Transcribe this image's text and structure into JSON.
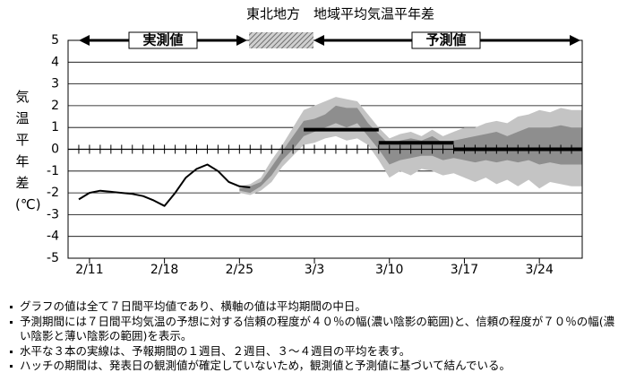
{
  "chart_data": {
    "type": "line",
    "title": "東北地方　地域平均気温平年差",
    "ylabel": "気温平年差(℃)",
    "annotations": [
      "実測値",
      "予測値"
    ],
    "categories": [
      null,
      null,
      "2/11",
      null,
      null,
      null,
      null,
      null,
      null,
      "2/18",
      null,
      null,
      null,
      null,
      null,
      null,
      "2/25",
      null,
      null,
      null,
      null,
      null,
      null,
      "3/3",
      null,
      null,
      null,
      null,
      null,
      null,
      "3/10",
      null,
      null,
      null,
      null,
      null,
      null,
      "3/17",
      null,
      null,
      null,
      null,
      null,
      null,
      "3/24",
      null,
      null,
      null,
      null
    ],
    "ylim": [
      -5,
      5
    ],
    "yticks": [
      -5,
      -4,
      -3,
      -2,
      -1,
      0,
      1,
      2,
      3,
      4,
      5
    ],
    "grid": true,
    "bands": [
      {
        "color": "#c4c4c4",
        "lower": [
          null,
          null,
          null,
          null,
          null,
          null,
          null,
          null,
          null,
          null,
          null,
          null,
          null,
          null,
          null,
          null,
          -2.0,
          -2.1,
          -1.9,
          -1.5,
          -0.8,
          -0.3,
          0.2,
          0.3,
          0.5,
          0.6,
          0.4,
          0.5,
          0.2,
          -0.5,
          -1.3,
          -1.0,
          -1.2,
          -0.9,
          -1.0,
          -1.2,
          -1.1,
          -1.3,
          -1.5,
          -1.3,
          -1.6,
          -1.4,
          -1.7,
          -1.4,
          -1.8,
          -1.5,
          -1.6,
          -1.7,
          -1.7
        ],
        "upper": [
          null,
          null,
          null,
          null,
          null,
          null,
          null,
          null,
          null,
          null,
          null,
          null,
          null,
          null,
          null,
          null,
          -1.7,
          -1.6,
          -1.3,
          -0.5,
          0.2,
          1.0,
          1.8,
          2.0,
          2.2,
          2.4,
          2.3,
          2.2,
          1.6,
          1.0,
          0.5,
          0.7,
          0.8,
          0.6,
          0.9,
          0.6,
          0.8,
          1.0,
          1.0,
          1.2,
          1.3,
          1.2,
          1.5,
          1.6,
          1.8,
          1.7,
          1.9,
          1.8,
          1.8
        ]
      },
      {
        "color": "#8e8e8e",
        "lower": [
          null,
          null,
          null,
          null,
          null,
          null,
          null,
          null,
          null,
          null,
          null,
          null,
          null,
          null,
          null,
          null,
          -1.9,
          -2.0,
          -1.7,
          -1.2,
          -0.5,
          0,
          0.6,
          0.8,
          1.0,
          1.2,
          1.0,
          1.2,
          0.6,
          0,
          -0.7,
          -0.5,
          -0.4,
          -0.3,
          -0.3,
          -0.5,
          -0.4,
          -0.5,
          -0.6,
          -0.5,
          -0.6,
          -0.5,
          -0.6,
          -0.5,
          -0.7,
          -0.6,
          -0.7,
          -0.7,
          -0.7
        ],
        "upper": [
          null,
          null,
          null,
          null,
          null,
          null,
          null,
          null,
          null,
          null,
          null,
          null,
          null,
          null,
          null,
          null,
          -1.8,
          -1.7,
          -1.5,
          -0.8,
          -0.1,
          0.6,
          1.3,
          1.4,
          1.6,
          2.0,
          1.9,
          1.9,
          1.2,
          0.7,
          0.2,
          0.4,
          0.5,
          0.4,
          0.6,
          0.3,
          0.4,
          0.5,
          0.6,
          0.7,
          0.8,
          0.6,
          0.8,
          1.0,
          1.0,
          1.0,
          1.1,
          1.0,
          1.0
        ]
      }
    ],
    "series": [
      {
        "color": "#000000",
        "width": 2,
        "values": [
          null,
          -2.3,
          -2.0,
          -1.9,
          -1.95,
          -2.0,
          -2.05,
          -2.15,
          -2.35,
          -2.6,
          -2.0,
          -1.3,
          -0.9,
          -0.7,
          -1.0,
          -1.5,
          -1.7,
          -1.75,
          null,
          null,
          null,
          null,
          null,
          null,
          null,
          null,
          null,
          null,
          null,
          null,
          null,
          null,
          null,
          null,
          null,
          null,
          null,
          null,
          null,
          null,
          null,
          null,
          null,
          null,
          null,
          null,
          null,
          null,
          null
        ]
      },
      {
        "color": "#000000",
        "width": 4,
        "values": [
          null,
          null,
          null,
          null,
          null,
          null,
          null,
          null,
          null,
          null,
          null,
          null,
          null,
          null,
          null,
          null,
          null,
          null,
          null,
          null,
          null,
          null,
          0.9,
          0.9,
          0.9,
          0.9,
          0.9,
          0.9,
          0.9,
          0.9,
          null,
          null,
          null,
          null,
          null,
          null,
          null,
          null,
          null,
          null,
          null,
          null,
          null,
          null,
          null,
          null,
          null,
          null,
          null
        ]
      },
      {
        "color": "#000000",
        "width": 4,
        "values": [
          null,
          null,
          null,
          null,
          null,
          null,
          null,
          null,
          null,
          null,
          null,
          null,
          null,
          null,
          null,
          null,
          null,
          null,
          null,
          null,
          null,
          null,
          null,
          null,
          null,
          null,
          null,
          null,
          null,
          0.3,
          0.3,
          0.3,
          0.3,
          0.3,
          0.3,
          0.3,
          0.3,
          null,
          null,
          null,
          null,
          null,
          null,
          null,
          null,
          null,
          null,
          null,
          null
        ]
      },
      {
        "color": "#000000",
        "width": 4,
        "values": [
          null,
          null,
          null,
          null,
          null,
          null,
          null,
          null,
          null,
          null,
          null,
          null,
          null,
          null,
          null,
          null,
          null,
          null,
          null,
          null,
          null,
          null,
          null,
          null,
          null,
          null,
          null,
          null,
          null,
          null,
          null,
          null,
          null,
          null,
          null,
          null,
          0,
          0,
          0,
          0,
          0,
          0,
          0,
          0,
          0,
          0,
          0,
          0,
          0
        ]
      }
    ]
  },
  "notes": [
    "グラフの値は全て７日間平均値であり、横軸の値は平均期間の中日。",
    "予測期間には７日間平均気温の予想に対する信頼の程度が４０％の幅(濃い陰影の範囲)と、信頼の程度が７０％の幅(濃い陰影と薄い陰影の範囲)を表示。",
    "水平な３本の実線は、予報期間の１週目、２週目、３～４週目の平均を表す。",
    "ハッチの期間は、発表日の観測値が確定していないため，観測値と予測値に基づいて結んでいる。"
  ]
}
